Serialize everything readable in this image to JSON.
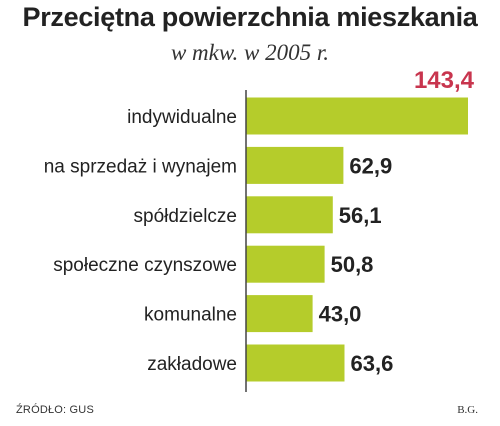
{
  "chart_data": {
    "type": "bar",
    "orientation": "horizontal",
    "title": "Przeciętna powierzchnia mieszkania",
    "subtitle": "w mkw. w 2005 r.",
    "categories": [
      "indywidualne",
      "na sprzedaż i wynajem",
      "spółdzielcze",
      "społeczne czynszowe",
      "komunalne",
      "zakładowe"
    ],
    "value_labels": [
      "143,4",
      "62,9",
      "56,1",
      "50,8",
      "43,0",
      "63,6"
    ],
    "values": [
      143.4,
      62.9,
      56.1,
      50.8,
      43.0,
      63.6
    ],
    "xlim": [
      0,
      143.4
    ],
    "bar_color": "#b5cc2b",
    "highlight_color": "#c8354e",
    "highlight_index": 0,
    "grid": false,
    "legend": "none"
  },
  "footer": {
    "source": "ŹRÓDŁO: GUS",
    "author": "B.G."
  }
}
